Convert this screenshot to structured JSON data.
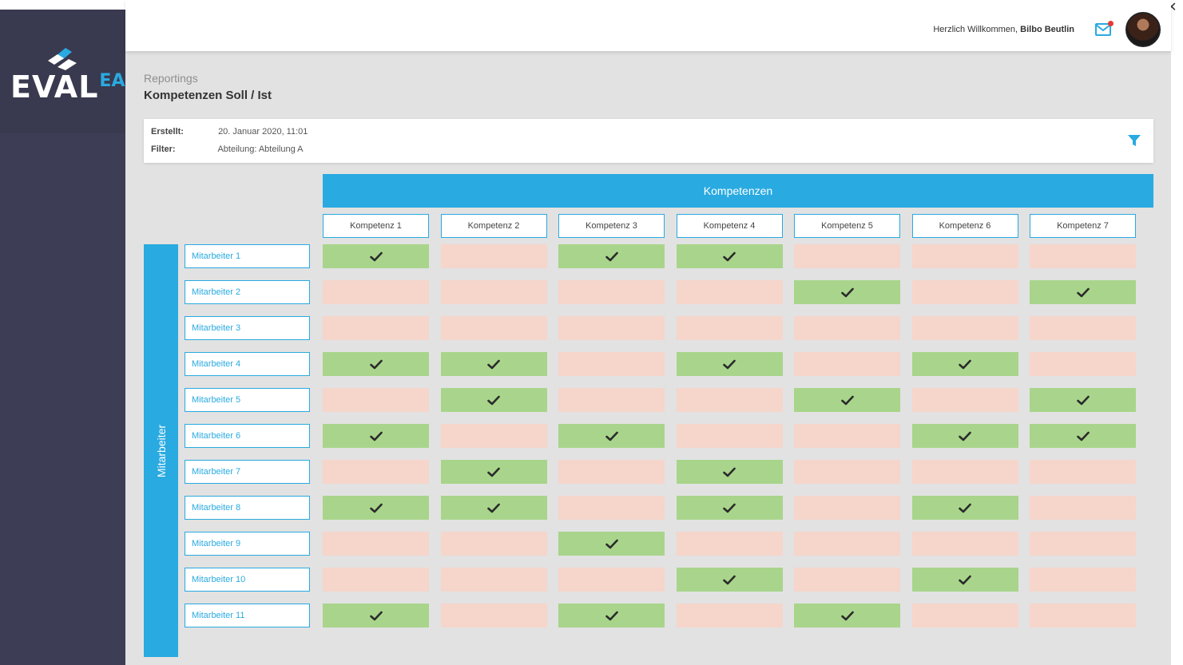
{
  "app": {
    "logo_text": "EVAL",
    "logo_sup": "EA"
  },
  "header": {
    "welcome_prefix": "Herzlich Willkommen,",
    "user_name": "Bilbo Beutlin",
    "mail_icon": "mail-icon",
    "close_icon": "close-icon"
  },
  "breadcrumb": "Reportings",
  "title": "Kompetenzen Soll / Ist",
  "info": {
    "created_label": "Erstellt:",
    "created_value": "20. Januar 2020, 11:01",
    "filter_label": "Filter:",
    "filter_value": "Abteilung: Abteilung A",
    "filter_icon": "filter-icon"
  },
  "matrix": {
    "column_group_title": "Kompetenzen",
    "row_group_title": "Mitarbeiter",
    "columns": [
      "Kompetenz 1",
      "Kompetenz 2",
      "Kompetenz 3",
      "Kompetenz 4",
      "Kompetenz 5",
      "Kompetenz 6",
      "Kompetenz 7"
    ],
    "rows": [
      {
        "label": "Mitarbeiter 1",
        "values": [
          1,
          0,
          1,
          1,
          0,
          0,
          0
        ]
      },
      {
        "label": "Mitarbeiter 2",
        "values": [
          0,
          0,
          0,
          0,
          1,
          0,
          1
        ]
      },
      {
        "label": "Mitarbeiter 3",
        "values": [
          0,
          0,
          0,
          0,
          0,
          0,
          0
        ]
      },
      {
        "label": "Mitarbeiter 4",
        "values": [
          1,
          1,
          0,
          1,
          0,
          1,
          0
        ]
      },
      {
        "label": "Mitarbeiter 5",
        "values": [
          0,
          1,
          0,
          0,
          1,
          0,
          1
        ]
      },
      {
        "label": "Mitarbeiter 6",
        "values": [
          1,
          0,
          1,
          0,
          0,
          1,
          1
        ]
      },
      {
        "label": "Mitarbeiter 7",
        "values": [
          0,
          1,
          0,
          1,
          0,
          0,
          0
        ]
      },
      {
        "label": "Mitarbeiter 8",
        "values": [
          1,
          1,
          0,
          1,
          0,
          1,
          0
        ]
      },
      {
        "label": "Mitarbeiter 9",
        "values": [
          0,
          0,
          1,
          0,
          0,
          0,
          0
        ]
      },
      {
        "label": "Mitarbeiter 10",
        "values": [
          0,
          0,
          0,
          1,
          0,
          1,
          0
        ]
      },
      {
        "label": "Mitarbeiter 11",
        "values": [
          1,
          0,
          1,
          0,
          1,
          0,
          0
        ]
      }
    ],
    "colors": {
      "yes": "#a8d58b",
      "no": "#f6d5cb",
      "accent": "#29aae1"
    }
  }
}
